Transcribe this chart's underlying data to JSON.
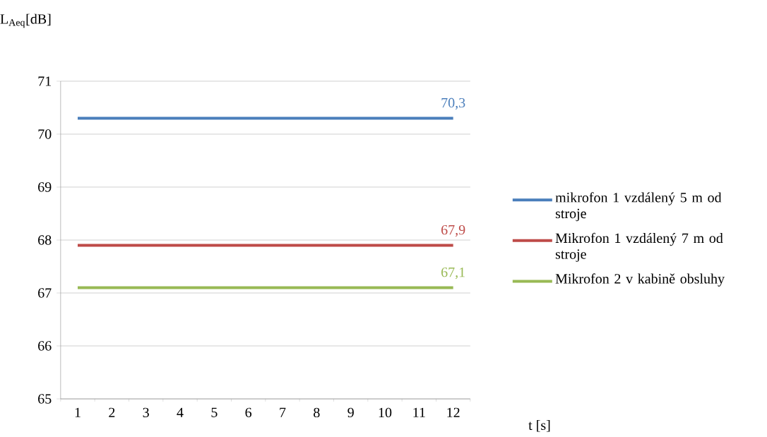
{
  "chart_data": {
    "type": "line",
    "ylabel": "L$_{Aeq}$[dB]",
    "xlabel": "t [s]",
    "categories": [
      "1",
      "2",
      "3",
      "4",
      "5",
      "6",
      "7",
      "8",
      "9",
      "10",
      "11",
      "12"
    ],
    "series": [
      {
        "name": "mikrofon 1 vzdálený 5 m od stroje",
        "color": "#4a7ebb",
        "values": [
          70.3,
          70.3,
          70.3,
          70.3,
          70.3,
          70.3,
          70.3,
          70.3,
          70.3,
          70.3,
          70.3,
          70.3
        ],
        "value_labels": [
          null,
          null,
          null,
          null,
          null,
          null,
          null,
          null,
          null,
          null,
          null,
          "70,3"
        ]
      },
      {
        "name": "Mikrofon 1 vzdálený 7 m od stroje",
        "color": "#be4b48",
        "values": [
          67.9,
          67.9,
          67.9,
          67.9,
          67.9,
          67.9,
          67.9,
          67.9,
          67.9,
          67.9,
          67.9,
          67.9
        ],
        "value_labels": [
          null,
          null,
          null,
          null,
          null,
          null,
          null,
          null,
          null,
          null,
          null,
          "67,9"
        ]
      },
      {
        "name": "Mikrofon 2 v kabině obsluhy",
        "color": "#98b954",
        "values": [
          67.1,
          67.1,
          67.1,
          67.1,
          67.1,
          67.1,
          67.1,
          67.1,
          67.1,
          67.1,
          67.1,
          67.1
        ],
        "value_labels": [
          null,
          null,
          null,
          null,
          null,
          null,
          null,
          null,
          null,
          null,
          null,
          "67,1"
        ]
      }
    ],
    "ylim": [
      65,
      71
    ],
    "yticks": [
      65,
      66,
      67,
      68,
      69,
      70,
      71
    ],
    "grid": "y",
    "legend": "right"
  }
}
